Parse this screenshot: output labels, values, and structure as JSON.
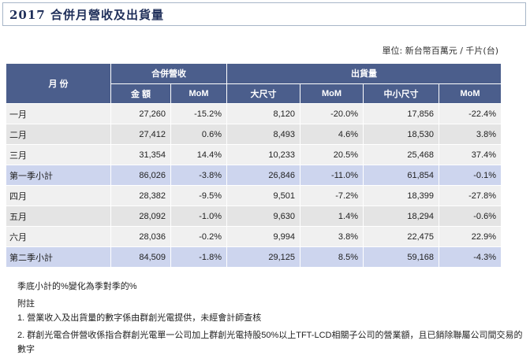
{
  "header": {
    "title": "2017 合併月營收及出貨量"
  },
  "unit_label": "單位: 新台幣百萬元 / 千片(台)",
  "table": {
    "group_headers": {
      "month": "月 份",
      "revenue": "合併營收",
      "shipments": "出貨量"
    },
    "columns": [
      "金 額",
      "MoM",
      "大尺寸",
      "MoM",
      "中小尺寸",
      "MoM"
    ],
    "rows": [
      {
        "label": "一月",
        "cells": [
          "27,260",
          "-15.2%",
          "8,120",
          "-20.0%",
          "17,856",
          "-22.4%"
        ],
        "type": "normal"
      },
      {
        "label": "二月",
        "cells": [
          "27,412",
          "0.6%",
          "8,493",
          "4.6%",
          "18,530",
          "3.8%"
        ],
        "type": "alt"
      },
      {
        "label": "三月",
        "cells": [
          "31,354",
          "14.4%",
          "10,233",
          "20.5%",
          "25,468",
          "37.4%"
        ],
        "type": "normal"
      },
      {
        "label": "第一季小計",
        "cells": [
          "86,026",
          "-3.8%",
          "26,846",
          "-11.0%",
          "61,854",
          "-0.1%"
        ],
        "type": "sub"
      },
      {
        "label": "四月",
        "cells": [
          "28,382",
          "-9.5%",
          "9,501",
          "-7.2%",
          "18,399",
          "-27.8%"
        ],
        "type": "normal"
      },
      {
        "label": "五月",
        "cells": [
          "28,092",
          "-1.0%",
          "9,630",
          "1.4%",
          "18,294",
          "-0.6%"
        ],
        "type": "alt"
      },
      {
        "label": "六月",
        "cells": [
          "28,036",
          "-0.2%",
          "9,994",
          "3.8%",
          "22,475",
          "22.9%"
        ],
        "type": "normal"
      },
      {
        "label": "第二季小計",
        "cells": [
          "84,509",
          "-1.8%",
          "29,125",
          "8.5%",
          "59,168",
          "-4.3%"
        ],
        "type": "sub"
      }
    ]
  },
  "notes": {
    "quarter_note": "季底小計的%變化為季對季的%",
    "appendix_title": "附註",
    "items": [
      "1. 營業收入及出貨量的數字係由群創光電提供，未經會計師查核",
      "2. 群創光電合併營收係指合群創光電單一公司加上群創光電持股50%以上TFT-LCD相關子公司的營業額，且已銷除聯屬公司間交易的數字"
    ]
  }
}
